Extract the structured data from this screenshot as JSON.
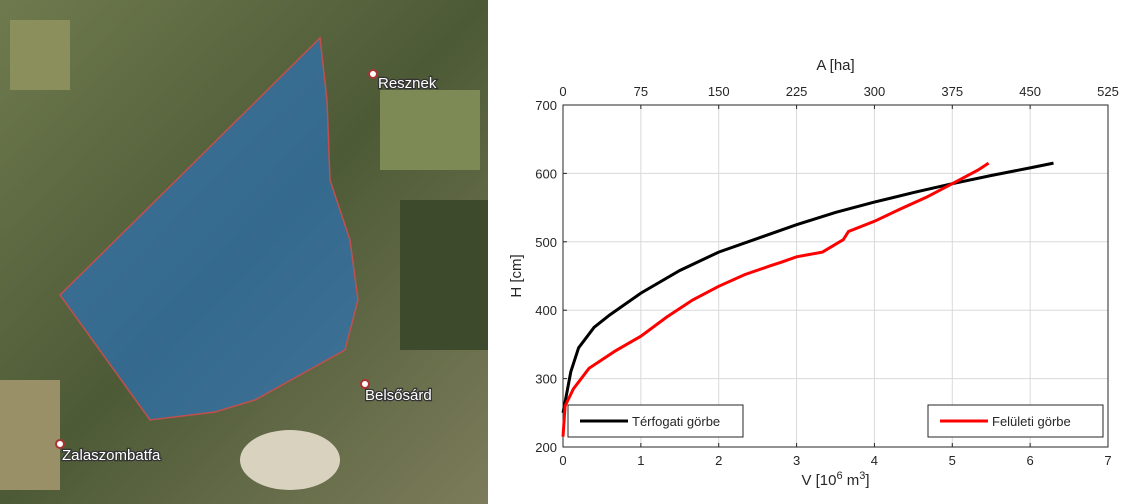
{
  "map": {
    "labels": [
      "Resznek",
      "Belsősárd",
      "Zalaszombatfa"
    ]
  },
  "chart_data": {
    "type": "line",
    "xlabel": [
      "V [10",
      "6",
      " m",
      "3",
      "]"
    ],
    "x2label": "A [ha]",
    "ylabel": "H [cm]",
    "xlim": [
      0,
      7
    ],
    "xticks": [
      0,
      1,
      2,
      3,
      4,
      5,
      6,
      7
    ],
    "x2lim": [
      0,
      525
    ],
    "x2ticks": [
      0,
      75,
      150,
      225,
      300,
      375,
      450,
      525
    ],
    "ylim": [
      200,
      700
    ],
    "yticks": [
      200,
      300,
      400,
      500,
      600,
      700
    ],
    "grid": true,
    "series": [
      {
        "name": "Térfogati görbe",
        "color": "#000000",
        "axis": "x",
        "legend": "lower left",
        "x": [
          0,
          0.02,
          0.1,
          0.2,
          0.4,
          0.6,
          1.0,
          1.5,
          2.0,
          2.5,
          3.0,
          3.5,
          4.0,
          4.5,
          5.0,
          5.5,
          6.0,
          6.3
        ],
        "values": [
          250,
          262,
          310,
          345,
          375,
          393,
          425,
          458,
          485,
          505,
          525,
          543,
          558,
          572,
          585,
          597,
          608,
          615
        ]
      },
      {
        "name": "Felületi görbe",
        "color": "#ff0000",
        "axis": "x2",
        "legend": "lower right",
        "x": [
          0,
          2,
          10,
          25,
          50,
          75,
          100,
          125,
          150,
          175,
          200,
          210,
          225,
          250,
          270,
          275,
          300,
          325,
          350,
          375,
          400,
          410
        ],
        "values": [
          215,
          260,
          285,
          315,
          340,
          362,
          390,
          415,
          435,
          452,
          465,
          470,
          478,
          485,
          503,
          515,
          530,
          548,
          565,
          585,
          605,
          615
        ]
      }
    ]
  }
}
